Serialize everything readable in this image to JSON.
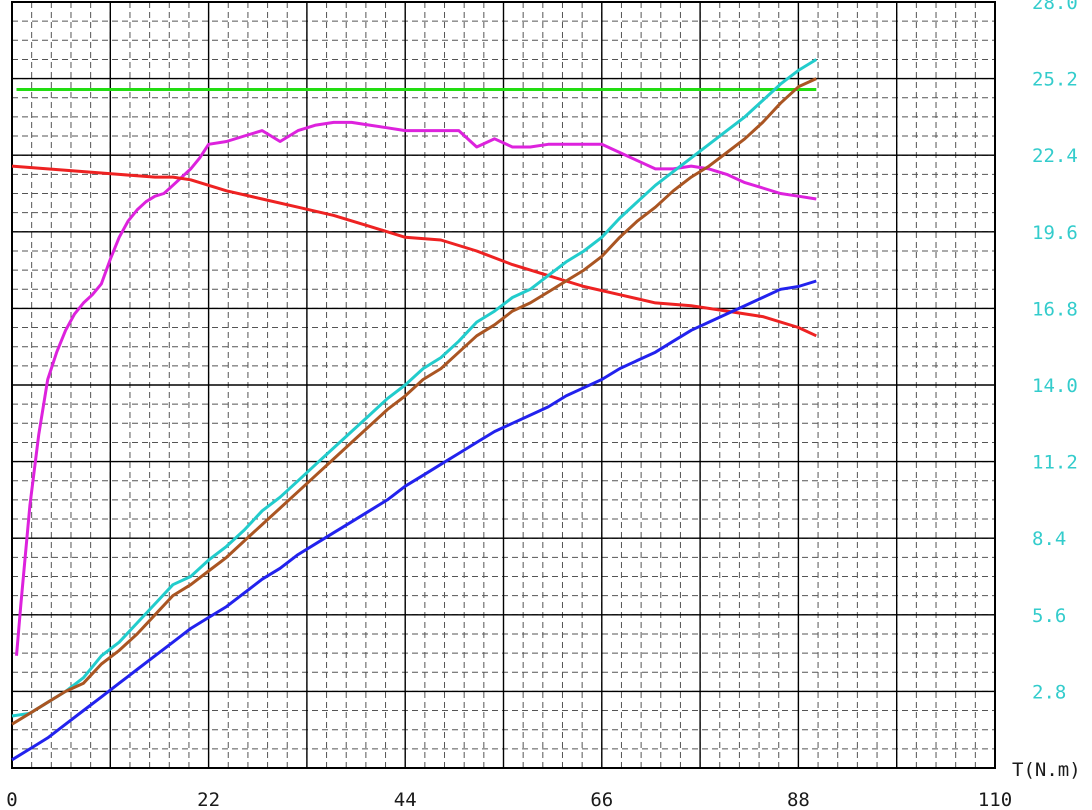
{
  "chart_data": {
    "type": "line",
    "x_axis": {
      "label": "T(N.m)",
      "min": 0,
      "max": 110,
      "ticks": [
        0,
        22,
        44,
        66,
        88,
        110
      ],
      "tick_labels": [
        "0",
        "22",
        "44",
        "66",
        "88",
        "110"
      ]
    },
    "y_axis_right": {
      "min": 0,
      "max": 28,
      "ticks": [
        2.8,
        5.6,
        8.4,
        11.2,
        14.0,
        16.8,
        19.6,
        22.4,
        25.2,
        28.0
      ],
      "tick_labels": [
        "2.8",
        "5.6",
        "8.4",
        "11.2",
        "14.0",
        "16.8",
        "19.6",
        "22.4",
        "25.2",
        "28.0"
      ],
      "color": "#33cccc"
    },
    "grid": {
      "major": true,
      "minor_dashed": true,
      "major_color": "#000000",
      "minor_color": "#555555"
    },
    "series": [
      {
        "key": "green",
        "color": "#22dd11",
        "x": [
          0.5,
          90
        ],
        "y": [
          24.8,
          24.8
        ]
      },
      {
        "key": "magenta",
        "color": "#dd22dd",
        "x": [
          0.5,
          1,
          2,
          3,
          4,
          5,
          6,
          7,
          8,
          9,
          10,
          11,
          12,
          13,
          14,
          15,
          16,
          17,
          18,
          19,
          20,
          21,
          22,
          24,
          26,
          28,
          30,
          32,
          34,
          36,
          38,
          40,
          42,
          44,
          46,
          48,
          50,
          52,
          54,
          56,
          58,
          60,
          62,
          64,
          66,
          68,
          70,
          72,
          74,
          76,
          78,
          80,
          82,
          84,
          86,
          88,
          90
        ],
        "y": [
          4.1,
          6.0,
          9.6,
          12.2,
          14.2,
          15.2,
          16.0,
          16.6,
          17.0,
          17.3,
          17.7,
          18.6,
          19.4,
          20.0,
          20.4,
          20.7,
          20.9,
          21.0,
          21.3,
          21.6,
          21.9,
          22.3,
          22.8,
          22.9,
          23.1,
          23.3,
          22.9,
          23.3,
          23.5,
          23.6,
          23.6,
          23.5,
          23.4,
          23.3,
          23.3,
          23.3,
          23.3,
          22.7,
          23.0,
          22.7,
          22.7,
          22.8,
          22.8,
          22.8,
          22.8,
          22.5,
          22.2,
          21.9,
          21.9,
          22.0,
          21.9,
          21.7,
          21.4,
          21.2,
          21.0,
          20.9,
          20.8
        ]
      },
      {
        "key": "red",
        "color": "#ee2222",
        "x": [
          0,
          4,
          8,
          12,
          16,
          18,
          20,
          22,
          24,
          28,
          32,
          36,
          40,
          44,
          48,
          52,
          56,
          60,
          64,
          68,
          72,
          76,
          80,
          84,
          88,
          90
        ],
        "y": [
          22.0,
          21.9,
          21.8,
          21.7,
          21.6,
          21.6,
          21.5,
          21.3,
          21.1,
          20.8,
          20.5,
          20.2,
          19.8,
          19.4,
          19.3,
          18.9,
          18.4,
          18.0,
          17.6,
          17.3,
          17.0,
          16.9,
          16.7,
          16.5,
          16.1,
          15.8
        ]
      },
      {
        "key": "cyan",
        "color": "#22cccc",
        "x": [
          0,
          2,
          4,
          6,
          8,
          10,
          12,
          14,
          16,
          18,
          20,
          22,
          24,
          26,
          28,
          30,
          32,
          34,
          36,
          38,
          40,
          42,
          44,
          46,
          48,
          50,
          52,
          54,
          56,
          58,
          60,
          62,
          64,
          66,
          68,
          70,
          72,
          74,
          76,
          78,
          80,
          82,
          84,
          86,
          88,
          90
        ],
        "y": [
          1.9,
          2.0,
          2.4,
          2.8,
          3.3,
          4.1,
          4.6,
          5.3,
          6.0,
          6.7,
          7.0,
          7.6,
          8.1,
          8.7,
          9.4,
          9.9,
          10.5,
          11.1,
          11.7,
          12.3,
          12.9,
          13.5,
          14.0,
          14.6,
          15.0,
          15.6,
          16.3,
          16.7,
          17.2,
          17.5,
          18.0,
          18.5,
          18.9,
          19.4,
          20.1,
          20.7,
          21.3,
          21.8,
          22.3,
          22.8,
          23.3,
          23.8,
          24.4,
          25.0,
          25.5,
          25.9
        ]
      },
      {
        "key": "brown",
        "color": "#aa5522",
        "x": [
          0,
          2,
          4,
          6,
          8,
          10,
          12,
          14,
          16,
          18,
          20,
          22,
          24,
          26,
          28,
          30,
          32,
          34,
          36,
          38,
          40,
          42,
          44,
          46,
          48,
          50,
          52,
          54,
          56,
          58,
          60,
          62,
          64,
          66,
          68,
          70,
          72,
          74,
          76,
          78,
          80,
          82,
          84,
          86,
          88,
          90
        ],
        "y": [
          1.6,
          2.0,
          2.4,
          2.8,
          3.1,
          3.8,
          4.3,
          4.9,
          5.6,
          6.3,
          6.7,
          7.2,
          7.7,
          8.3,
          8.9,
          9.5,
          10.1,
          10.7,
          11.3,
          11.9,
          12.5,
          13.1,
          13.6,
          14.2,
          14.6,
          15.2,
          15.8,
          16.2,
          16.7,
          17.0,
          17.4,
          17.8,
          18.2,
          18.7,
          19.4,
          20.0,
          20.5,
          21.1,
          21.6,
          22.0,
          22.5,
          23.0,
          23.6,
          24.3,
          24.9,
          25.2
        ]
      },
      {
        "key": "blue",
        "color": "#2222ee",
        "x": [
          0,
          2,
          4,
          6,
          8,
          10,
          12,
          14,
          16,
          18,
          20,
          22,
          24,
          26,
          28,
          30,
          32,
          34,
          36,
          38,
          40,
          42,
          44,
          46,
          48,
          50,
          52,
          54,
          56,
          58,
          60,
          62,
          64,
          66,
          68,
          70,
          72,
          74,
          76,
          78,
          80,
          82,
          84,
          86,
          88,
          90
        ],
        "y": [
          0.3,
          0.7,
          1.1,
          1.6,
          2.1,
          2.6,
          3.1,
          3.6,
          4.1,
          4.6,
          5.1,
          5.5,
          5.9,
          6.4,
          6.9,
          7.3,
          7.8,
          8.2,
          8.6,
          9.0,
          9.4,
          9.8,
          10.3,
          10.7,
          11.1,
          11.5,
          11.9,
          12.3,
          12.6,
          12.9,
          13.2,
          13.6,
          13.9,
          14.2,
          14.6,
          14.9,
          15.2,
          15.6,
          16.0,
          16.3,
          16.6,
          16.9,
          17.2,
          17.5,
          17.6,
          17.8
        ]
      }
    ]
  }
}
